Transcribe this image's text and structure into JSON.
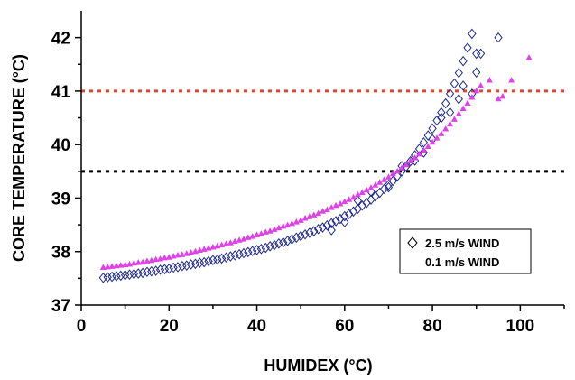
{
  "chart_data": {
    "type": "scatter",
    "xlabel": "HUMIDEX (°C)",
    "ylabel": "CORE TEMPERATURE (°C)",
    "xlim": [
      0,
      110
    ],
    "ylim": [
      37,
      42.5
    ],
    "xticks": [
      0,
      20,
      40,
      60,
      80,
      100
    ],
    "yticks": [
      37,
      38,
      39,
      40,
      41,
      42
    ],
    "grid": false,
    "legend_position": "lower-right",
    "reference_lines": [
      {
        "y": 41.0,
        "color": "#e8432a",
        "style": "dotted"
      },
      {
        "y": 39.5,
        "color": "#000000",
        "style": "dotted"
      }
    ],
    "series": [
      {
        "name": "2.5 m/s WIND",
        "marker": "diamond-open",
        "color": "#1f2a8c",
        "points": [
          [
            5,
            37.51
          ],
          [
            6,
            37.52
          ],
          [
            7,
            37.53
          ],
          [
            8,
            37.54
          ],
          [
            9,
            37.55
          ],
          [
            10,
            37.56
          ],
          [
            11,
            37.57
          ],
          [
            12,
            37.58
          ],
          [
            13,
            37.59
          ],
          [
            14,
            37.6
          ],
          [
            15,
            37.62
          ],
          [
            16,
            37.63
          ],
          [
            17,
            37.64
          ],
          [
            18,
            37.66
          ],
          [
            19,
            37.67
          ],
          [
            20,
            37.68
          ],
          [
            21,
            37.7
          ],
          [
            22,
            37.71
          ],
          [
            23,
            37.73
          ],
          [
            24,
            37.74
          ],
          [
            25,
            37.76
          ],
          [
            26,
            37.77
          ],
          [
            27,
            37.79
          ],
          [
            28,
            37.8
          ],
          [
            29,
            37.82
          ],
          [
            30,
            37.84
          ],
          [
            31,
            37.85
          ],
          [
            32,
            37.87
          ],
          [
            33,
            37.89
          ],
          [
            34,
            37.91
          ],
          [
            35,
            37.93
          ],
          [
            36,
            37.95
          ],
          [
            37,
            37.97
          ],
          [
            38,
            37.99
          ],
          [
            39,
            38.01
          ],
          [
            40,
            38.03
          ],
          [
            41,
            38.05
          ],
          [
            42,
            38.07
          ],
          [
            43,
            38.1
          ],
          [
            44,
            38.12
          ],
          [
            45,
            38.15
          ],
          [
            46,
            38.17
          ],
          [
            47,
            38.2
          ],
          [
            48,
            38.23
          ],
          [
            49,
            38.26
          ],
          [
            50,
            38.29
          ],
          [
            51,
            38.32
          ],
          [
            52,
            38.35
          ],
          [
            53,
            38.38
          ],
          [
            54,
            38.42
          ],
          [
            55,
            38.45
          ],
          [
            56,
            38.49
          ],
          [
            57,
            38.53
          ],
          [
            58,
            38.57
          ],
          [
            59,
            38.61
          ],
          [
            60,
            38.66
          ],
          [
            61,
            38.7
          ],
          [
            62,
            38.75
          ],
          [
            63,
            38.8
          ],
          [
            64,
            38.86
          ],
          [
            65,
            38.91
          ],
          [
            66,
            38.97
          ],
          [
            67,
            39.03
          ],
          [
            68,
            39.1
          ],
          [
            69,
            39.17
          ],
          [
            70,
            39.25
          ],
          [
            71,
            39.32
          ],
          [
            72,
            39.41
          ],
          [
            73,
            39.5
          ],
          [
            74,
            39.59
          ],
          [
            75,
            39.69
          ],
          [
            76,
            39.8
          ],
          [
            77,
            39.92
          ],
          [
            78,
            40.04
          ],
          [
            79,
            40.17
          ],
          [
            80,
            40.3
          ],
          [
            81,
            40.45
          ],
          [
            82,
            40.6
          ],
          [
            83,
            40.77
          ],
          [
            84,
            40.95
          ],
          [
            85,
            41.14
          ],
          [
            86,
            41.34
          ],
          [
            87,
            41.56
          ],
          [
            88,
            41.81
          ],
          [
            89,
            42.07
          ],
          [
            57,
            38.4
          ],
          [
            60,
            38.55
          ],
          [
            63,
            38.95
          ],
          [
            66,
            39.12
          ],
          [
            70,
            39.2
          ],
          [
            73,
            39.6
          ],
          [
            76,
            39.7
          ],
          [
            78,
            39.85
          ],
          [
            80,
            40.1
          ],
          [
            82,
            40.5
          ],
          [
            84,
            40.6
          ],
          [
            86,
            40.85
          ],
          [
            87,
            41.1
          ],
          [
            89,
            40.95
          ],
          [
            90,
            41.35
          ],
          [
            90,
            41.7
          ],
          [
            91,
            41.7
          ],
          [
            95,
            42.0
          ]
        ]
      },
      {
        "name": "0.1 m/s WIND",
        "marker": "triangle-filled",
        "color": "#e040e8",
        "points": [
          [
            5,
            37.7
          ],
          [
            6,
            37.71
          ],
          [
            7,
            37.72
          ],
          [
            8,
            37.73
          ],
          [
            9,
            37.74
          ],
          [
            10,
            37.75
          ],
          [
            11,
            37.76
          ],
          [
            12,
            37.78
          ],
          [
            13,
            37.79
          ],
          [
            14,
            37.8
          ],
          [
            15,
            37.82
          ],
          [
            16,
            37.83
          ],
          [
            17,
            37.85
          ],
          [
            18,
            37.86
          ],
          [
            19,
            37.88
          ],
          [
            20,
            37.89
          ],
          [
            21,
            37.91
          ],
          [
            22,
            37.93
          ],
          [
            23,
            37.94
          ],
          [
            24,
            37.96
          ],
          [
            25,
            37.98
          ],
          [
            26,
            38.0
          ],
          [
            27,
            38.02
          ],
          [
            28,
            38.04
          ],
          [
            29,
            38.06
          ],
          [
            30,
            38.08
          ],
          [
            31,
            38.1
          ],
          [
            32,
            38.12
          ],
          [
            33,
            38.14
          ],
          [
            34,
            38.16
          ],
          [
            35,
            38.19
          ],
          [
            36,
            38.21
          ],
          [
            37,
            38.23
          ],
          [
            38,
            38.26
          ],
          [
            39,
            38.28
          ],
          [
            40,
            38.31
          ],
          [
            41,
            38.33
          ],
          [
            42,
            38.36
          ],
          [
            43,
            38.38
          ],
          [
            44,
            38.41
          ],
          [
            45,
            38.44
          ],
          [
            46,
            38.47
          ],
          [
            47,
            38.49
          ],
          [
            48,
            38.52
          ],
          [
            49,
            38.55
          ],
          [
            50,
            38.58
          ],
          [
            51,
            38.62
          ],
          [
            52,
            38.65
          ],
          [
            53,
            38.68
          ],
          [
            54,
            38.71
          ],
          [
            55,
            38.75
          ],
          [
            56,
            38.78
          ],
          [
            57,
            38.82
          ],
          [
            58,
            38.86
          ],
          [
            59,
            38.89
          ],
          [
            60,
            38.93
          ],
          [
            61,
            38.97
          ],
          [
            62,
            39.01
          ],
          [
            63,
            39.06
          ],
          [
            64,
            39.1
          ],
          [
            65,
            39.15
          ],
          [
            66,
            39.19
          ],
          [
            67,
            39.24
          ],
          [
            68,
            39.29
          ],
          [
            69,
            39.34
          ],
          [
            70,
            39.39
          ],
          [
            71,
            39.45
          ],
          [
            72,
            39.5
          ],
          [
            73,
            39.56
          ],
          [
            74,
            39.62
          ],
          [
            75,
            39.69
          ],
          [
            76,
            39.75
          ],
          [
            77,
            39.82
          ],
          [
            78,
            39.89
          ],
          [
            79,
            39.96
          ],
          [
            80,
            40.04
          ],
          [
            81,
            40.12
          ],
          [
            82,
            40.2
          ],
          [
            83,
            40.29
          ],
          [
            84,
            40.38
          ],
          [
            85,
            40.47
          ],
          [
            86,
            40.57
          ],
          [
            87,
            40.67
          ],
          [
            88,
            40.77
          ],
          [
            89,
            40.88
          ],
          [
            90,
            41.0
          ],
          [
            91,
            41.1
          ],
          [
            93,
            41.2
          ],
          [
            95,
            40.85
          ],
          [
            96,
            40.9
          ],
          [
            98,
            41.2
          ],
          [
            102,
            41.62
          ]
        ]
      }
    ]
  }
}
